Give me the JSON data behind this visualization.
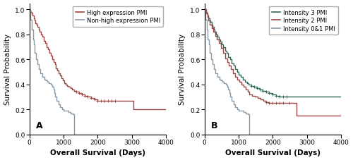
{
  "panel_A": {
    "label": "A",
    "xlabel": "Overall Survival (Days)",
    "ylabel": "Survival Probability",
    "xlim": [
      0,
      4000
    ],
    "ylim": [
      0.0,
      1.05
    ],
    "xticks": [
      0,
      1000,
      2000,
      3000,
      4000
    ],
    "yticks": [
      0.0,
      0.2,
      0.4,
      0.6,
      0.8,
      1.0
    ],
    "high_color": "#9B4444",
    "nonhigh_color": "#8899AA",
    "legend_labels": [
      "High expression PMI",
      "Non-high expression PMI"
    ],
    "high_x": [
      0,
      30,
      60,
      90,
      120,
      150,
      180,
      210,
      240,
      270,
      300,
      340,
      380,
      420,
      460,
      500,
      540,
      580,
      620,
      660,
      700,
      740,
      780,
      820,
      860,
      900,
      940,
      980,
      1020,
      1060,
      1100,
      1150,
      1200,
      1250,
      1300,
      1380,
      1460,
      1540,
      1620,
      1700,
      1800,
      1900,
      2000,
      2100,
      2200,
      2300,
      2400,
      2500,
      2700,
      3050,
      3200,
      3700,
      4000
    ],
    "high_y": [
      1.0,
      0.98,
      0.97,
      0.95,
      0.93,
      0.91,
      0.89,
      0.88,
      0.86,
      0.84,
      0.82,
      0.8,
      0.78,
      0.75,
      0.73,
      0.7,
      0.68,
      0.65,
      0.63,
      0.6,
      0.58,
      0.56,
      0.53,
      0.51,
      0.49,
      0.47,
      0.45,
      0.43,
      0.41,
      0.4,
      0.39,
      0.38,
      0.37,
      0.36,
      0.35,
      0.34,
      0.33,
      0.32,
      0.31,
      0.3,
      0.29,
      0.28,
      0.27,
      0.27,
      0.27,
      0.27,
      0.27,
      0.27,
      0.27,
      0.2,
      0.2,
      0.2,
      0.2
    ],
    "nonhigh_x": [
      0,
      30,
      60,
      100,
      130,
      160,
      200,
      240,
      280,
      320,
      380,
      440,
      490,
      530,
      570,
      620,
      660,
      700,
      730,
      760,
      800,
      850,
      900,
      950,
      1000,
      1050,
      1100,
      1150,
      1200,
      1260,
      1310,
      4000
    ],
    "nonhigh_y": [
      1.0,
      0.92,
      0.84,
      0.76,
      0.72,
      0.65,
      0.6,
      0.56,
      0.52,
      0.49,
      0.46,
      0.44,
      0.43,
      0.42,
      0.41,
      0.4,
      0.38,
      0.36,
      0.33,
      0.3,
      0.27,
      0.24,
      0.22,
      0.2,
      0.19,
      0.19,
      0.19,
      0.18,
      0.17,
      0.16,
      0.0,
      0.0
    ],
    "censor_high_x": [
      1380,
      1460,
      1540,
      1620,
      1700,
      1800,
      1900,
      2000,
      2100,
      2200,
      2300,
      2400,
      2500
    ],
    "censor_high_y": [
      0.34,
      0.33,
      0.32,
      0.31,
      0.3,
      0.29,
      0.28,
      0.27,
      0.27,
      0.27,
      0.27,
      0.27,
      0.27
    ]
  },
  "panel_B": {
    "label": "B",
    "xlabel": "Overall Survival (Days)",
    "ylabel": "Survival Probability",
    "xlim": [
      0,
      4000
    ],
    "ylim": [
      0.0,
      1.05
    ],
    "xticks": [
      0,
      1000,
      2000,
      3000,
      4000
    ],
    "yticks": [
      0.0,
      0.2,
      0.4,
      0.6,
      0.8,
      1.0
    ],
    "int3_color": "#336655",
    "int2_color": "#9B4444",
    "int01_color": "#8899AA",
    "legend_labels": [
      "Intensity 3 PMI",
      "Intensity 2 PMI",
      "Intensity 0&1 PMI"
    ],
    "int3_x": [
      0,
      30,
      60,
      90,
      120,
      150,
      180,
      210,
      240,
      270,
      300,
      340,
      380,
      420,
      460,
      500,
      550,
      600,
      650,
      700,
      750,
      800,
      850,
      900,
      950,
      1000,
      1060,
      1120,
      1180,
      1240,
      1300,
      1380,
      1460,
      1540,
      1620,
      1700,
      1800,
      1900,
      2000,
      2100,
      2200,
      2300,
      2400,
      2500,
      2700,
      3050,
      3200,
      3700,
      4000
    ],
    "int3_y": [
      1.0,
      0.98,
      0.97,
      0.95,
      0.93,
      0.91,
      0.9,
      0.88,
      0.86,
      0.84,
      0.82,
      0.8,
      0.78,
      0.76,
      0.74,
      0.72,
      0.7,
      0.67,
      0.65,
      0.62,
      0.6,
      0.57,
      0.55,
      0.52,
      0.5,
      0.48,
      0.46,
      0.44,
      0.42,
      0.41,
      0.4,
      0.39,
      0.38,
      0.37,
      0.36,
      0.35,
      0.34,
      0.33,
      0.32,
      0.31,
      0.3,
      0.3,
      0.3,
      0.3,
      0.3,
      0.3,
      0.3,
      0.3,
      0.3
    ],
    "int2_x": [
      0,
      40,
      80,
      120,
      160,
      210,
      260,
      310,
      360,
      420,
      480,
      540,
      600,
      660,
      720,
      780,
      840,
      900,
      960,
      1020,
      1080,
      1140,
      1200,
      1260,
      1320,
      1400,
      1480,
      1560,
      1640,
      1720,
      1800,
      1900,
      2000,
      2100,
      2200,
      2300,
      2500,
      2700,
      3050,
      3700,
      4000
    ],
    "int2_y": [
      1.0,
      0.97,
      0.94,
      0.91,
      0.88,
      0.85,
      0.82,
      0.79,
      0.76,
      0.73,
      0.69,
      0.65,
      0.61,
      0.58,
      0.55,
      0.52,
      0.49,
      0.46,
      0.44,
      0.42,
      0.4,
      0.38,
      0.36,
      0.34,
      0.32,
      0.31,
      0.3,
      0.29,
      0.28,
      0.27,
      0.26,
      0.25,
      0.25,
      0.25,
      0.25,
      0.25,
      0.25,
      0.15,
      0.15,
      0.15,
      0.15
    ],
    "int01_x": [
      0,
      30,
      60,
      100,
      130,
      160,
      200,
      240,
      280,
      320,
      380,
      440,
      490,
      530,
      570,
      620,
      660,
      700,
      730,
      760,
      800,
      850,
      900,
      950,
      1000,
      1050,
      1100,
      1150,
      1200,
      1260,
      1310,
      4000
    ],
    "int01_y": [
      1.0,
      0.92,
      0.84,
      0.76,
      0.72,
      0.65,
      0.6,
      0.56,
      0.52,
      0.49,
      0.46,
      0.44,
      0.43,
      0.42,
      0.41,
      0.4,
      0.38,
      0.36,
      0.33,
      0.3,
      0.27,
      0.24,
      0.22,
      0.2,
      0.19,
      0.19,
      0.19,
      0.18,
      0.17,
      0.16,
      0.0,
      0.0
    ],
    "censor_int3_x": [
      1380,
      1460,
      1540,
      1620,
      1700,
      1800,
      1900,
      2000,
      2100,
      2200,
      2300,
      2400
    ],
    "censor_int3_y": [
      0.39,
      0.38,
      0.37,
      0.36,
      0.35,
      0.34,
      0.33,
      0.32,
      0.31,
      0.3,
      0.3,
      0.3
    ],
    "censor_int2_x": [
      1800,
      1900,
      2000,
      2100,
      2200,
      2300,
      2500
    ],
    "censor_int2_y": [
      0.26,
      0.25,
      0.25,
      0.25,
      0.25,
      0.25,
      0.25
    ]
  },
  "fig_background": "#ffffff",
  "font_size_label": 7.5,
  "font_size_tick": 6.5,
  "font_size_legend": 6.0,
  "font_size_panel_label": 9
}
